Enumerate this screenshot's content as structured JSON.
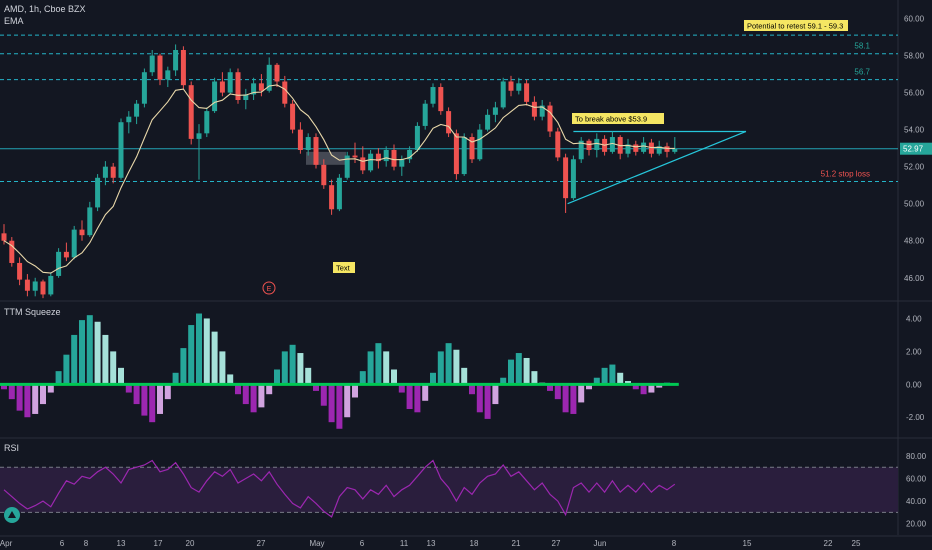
{
  "header": {
    "symbol_line": "AMD, 1h, Cboe BZX",
    "ema_label": "EMA"
  },
  "colors": {
    "background": "#131722",
    "grid": "#1e222d",
    "axis_text": "#b2b5be",
    "bull": "#26a69a",
    "bear": "#ef5350",
    "ema": "#e8d7a9",
    "level_line": "#26c6da",
    "rsi_line": "#9c27b0",
    "rsi_band": "#2a1e3d",
    "squeeze_pos_strong": "#26a69a",
    "squeeze_pos_weak": "#a6e1d9",
    "squeeze_neg_strong": "#9c27b0",
    "squeeze_neg_weak": "#d1a3df",
    "zero_line": "#00c853",
    "annotation_bg": "#f5e663",
    "stop_loss": "#ef5350"
  },
  "chart_data": [
    {
      "type": "candlestick",
      "panel": "price",
      "symbol": "AMD",
      "interval": "1h",
      "exchange": "Cboe BZX",
      "ylim": [
        44.8,
        61.0
      ],
      "y_ticks": [
        "46.00",
        "48.00",
        "50.00",
        "52.00",
        "54.00",
        "56.00",
        "58.00",
        "60.00"
      ],
      "last_price": "52.97",
      "x_ticks": [
        "Apr",
        "6",
        "8",
        "13",
        "17",
        "20",
        "27",
        "May",
        "6",
        "11",
        "13",
        "18",
        "21",
        "27",
        "Jun",
        "8",
        "15",
        "22",
        "25"
      ],
      "candles": [
        [
          0,
          48.4,
          48.9,
          47.8,
          48.0
        ],
        [
          1,
          48.0,
          48.2,
          46.6,
          46.8
        ],
        [
          2,
          46.8,
          47.1,
          45.6,
          45.9
        ],
        [
          3,
          45.9,
          46.2,
          45.0,
          45.3
        ],
        [
          4,
          45.3,
          46.0,
          45.0,
          45.8
        ],
        [
          5,
          45.8,
          45.9,
          44.9,
          45.1
        ],
        [
          6,
          45.1,
          46.3,
          45.0,
          46.1
        ],
        [
          7,
          46.1,
          47.6,
          46.0,
          47.4
        ],
        [
          8,
          47.4,
          47.9,
          46.9,
          47.1
        ],
        [
          9,
          47.1,
          48.8,
          47.0,
          48.6
        ],
        [
          10,
          48.6,
          49.1,
          48.0,
          48.3
        ],
        [
          11,
          48.3,
          50.1,
          48.2,
          49.8
        ],
        [
          12,
          49.8,
          51.6,
          49.6,
          51.4
        ],
        [
          13,
          51.4,
          52.3,
          51.0,
          52.0
        ],
        [
          14,
          52.0,
          52.2,
          51.1,
          51.4
        ],
        [
          15,
          51.4,
          54.6,
          51.3,
          54.4
        ],
        [
          16,
          54.4,
          55.0,
          53.8,
          54.7
        ],
        [
          17,
          54.7,
          55.6,
          54.3,
          55.4
        ],
        [
          18,
          55.4,
          57.3,
          55.2,
          57.1
        ],
        [
          19,
          57.1,
          58.3,
          56.9,
          58.0
        ],
        [
          20,
          58.0,
          58.1,
          56.4,
          56.7
        ],
        [
          21,
          56.7,
          57.4,
          56.3,
          57.2
        ],
        [
          22,
          57.2,
          58.6,
          56.9,
          58.3
        ],
        [
          23,
          58.3,
          58.5,
          56.2,
          56.4
        ],
        [
          24,
          56.4,
          56.6,
          53.2,
          53.5
        ],
        [
          25,
          53.5,
          54.3,
          51.3,
          53.8
        ],
        [
          26,
          53.8,
          55.2,
          53.6,
          55.0
        ],
        [
          27,
          55.0,
          56.8,
          54.9,
          56.6
        ],
        [
          28,
          56.6,
          57.1,
          55.8,
          56.0
        ],
        [
          29,
          56.0,
          57.3,
          55.9,
          57.1
        ],
        [
          30,
          57.1,
          57.3,
          55.4,
          55.6
        ],
        [
          31,
          55.6,
          56.2,
          55.1,
          55.9
        ],
        [
          32,
          55.9,
          56.8,
          55.6,
          56.5
        ],
        [
          33,
          56.5,
          57.0,
          55.8,
          56.1
        ],
        [
          34,
          56.1,
          57.9,
          56.0,
          57.5
        ],
        [
          35,
          57.5,
          57.6,
          56.3,
          56.6
        ],
        [
          36,
          56.6,
          56.9,
          55.2,
          55.4
        ],
        [
          37,
          55.4,
          55.6,
          53.8,
          54.0
        ],
        [
          38,
          54.0,
          54.4,
          52.7,
          52.9
        ],
        [
          39,
          52.9,
          53.8,
          52.6,
          53.6
        ],
        [
          40,
          53.6,
          53.8,
          51.9,
          52.1
        ],
        [
          41,
          52.1,
          52.4,
          50.8,
          51.0
        ],
        [
          42,
          51.0,
          51.3,
          49.4,
          49.7
        ],
        [
          43,
          49.7,
          51.6,
          49.6,
          51.4
        ],
        [
          44,
          51.4,
          52.8,
          51.3,
          52.6
        ],
        [
          45,
          52.6,
          53.3,
          52.2,
          52.5
        ],
        [
          46,
          52.5,
          53.1,
          51.6,
          51.8
        ],
        [
          47,
          51.8,
          52.9,
          51.7,
          52.7
        ],
        [
          48,
          52.7,
          53.0,
          51.9,
          52.3
        ],
        [
          49,
          52.3,
          53.1,
          52.0,
          52.9
        ],
        [
          50,
          52.9,
          53.2,
          51.8,
          52.0
        ],
        [
          51,
          52.0,
          52.6,
          51.5,
          52.4
        ],
        [
          52,
          52.4,
          53.1,
          52.2,
          52.9
        ],
        [
          53,
          52.9,
          54.4,
          52.8,
          54.2
        ],
        [
          54,
          54.2,
          55.6,
          54.0,
          55.4
        ],
        [
          55,
          55.4,
          56.5,
          55.2,
          56.3
        ],
        [
          56,
          56.3,
          56.5,
          54.8,
          55.0
        ],
        [
          57,
          55.0,
          55.2,
          53.6,
          53.8
        ],
        [
          58,
          53.8,
          54.0,
          51.3,
          51.6
        ],
        [
          59,
          51.6,
          53.8,
          51.5,
          53.6
        ],
        [
          60,
          53.6,
          53.8,
          52.2,
          52.4
        ],
        [
          61,
          52.4,
          54.3,
          52.3,
          54.0
        ],
        [
          62,
          54.0,
          55.1,
          53.9,
          54.8
        ],
        [
          63,
          54.8,
          55.5,
          54.4,
          55.2
        ],
        [
          64,
          55.2,
          56.8,
          55.1,
          56.6
        ],
        [
          65,
          56.6,
          56.9,
          55.8,
          56.1
        ],
        [
          66,
          56.1,
          56.8,
          55.9,
          56.5
        ],
        [
          67,
          56.5,
          56.7,
          55.3,
          55.5
        ],
        [
          68,
          55.5,
          55.8,
          54.5,
          54.7
        ],
        [
          69,
          54.7,
          55.6,
          54.5,
          55.3
        ],
        [
          70,
          55.3,
          55.5,
          53.6,
          53.9
        ],
        [
          71,
          53.9,
          54.1,
          52.3,
          52.5
        ],
        [
          72,
          52.5,
          52.7,
          49.5,
          50.3
        ],
        [
          73,
          50.3,
          52.6,
          50.2,
          52.4
        ],
        [
          74,
          52.4,
          53.6,
          52.2,
          53.4
        ],
        [
          75,
          53.4,
          53.5,
          52.6,
          52.9
        ],
        [
          76,
          52.9,
          53.8,
          52.5,
          53.5
        ],
        [
          77,
          53.5,
          53.7,
          52.6,
          52.8
        ],
        [
          78,
          52.8,
          53.9,
          52.7,
          53.6
        ],
        [
          79,
          53.6,
          53.7,
          52.4,
          52.7
        ],
        [
          80,
          52.7,
          53.5,
          52.5,
          53.2
        ],
        [
          81,
          53.2,
          53.4,
          52.6,
          52.8
        ],
        [
          82,
          52.8,
          53.6,
          52.7,
          53.3
        ],
        [
          83,
          53.3,
          53.5,
          52.5,
          52.7
        ],
        [
          84,
          52.7,
          53.4,
          52.6,
          53.1
        ],
        [
          85,
          53.1,
          53.3,
          52.5,
          52.8
        ],
        [
          86,
          52.8,
          53.6,
          52.7,
          52.97
        ]
      ],
      "ema_label": "EMA",
      "levels": [
        {
          "value": 59.1,
          "label": ""
        },
        {
          "value": 58.1,
          "label": "58.1"
        },
        {
          "value": 56.7,
          "label": "56.7"
        },
        {
          "value": 52.97,
          "label": ""
        },
        {
          "value": 51.2,
          "label": "51.2 stop loss"
        }
      ],
      "annotations": [
        "Potential to retest 59.1 - 59.3",
        "To break above $53.9",
        "Text"
      ],
      "event_marker": "E"
    },
    {
      "type": "bar",
      "panel": "squeeze",
      "title": "TTM Squeeze",
      "ylim": [
        -3.2,
        5.0
      ],
      "y_ticks": [
        "4.00",
        "2.00",
        "0.00",
        "-2.00"
      ],
      "values": [
        -0.3,
        -0.9,
        -1.6,
        -2.0,
        -1.8,
        -1.2,
        -0.5,
        0.8,
        1.8,
        3.0,
        3.9,
        4.2,
        3.8,
        3.0,
        2.0,
        1.0,
        -0.5,
        -1.2,
        -1.9,
        -2.3,
        -1.8,
        -0.9,
        0.7,
        2.2,
        3.6,
        4.3,
        4.0,
        3.2,
        2.0,
        0.6,
        -0.6,
        -1.2,
        -1.7,
        -1.4,
        -0.6,
        0.9,
        2.0,
        2.4,
        1.9,
        1.0,
        -0.4,
        -1.3,
        -2.3,
        -2.7,
        -2.0,
        -0.8,
        0.8,
        2.0,
        2.5,
        2.0,
        0.9,
        -0.5,
        -1.5,
        -1.7,
        -1.0,
        0.7,
        2.0,
        2.5,
        2.1,
        1.0,
        -0.6,
        -1.7,
        -2.1,
        -1.2,
        0.4,
        1.5,
        1.9,
        1.6,
        0.8,
        0.1,
        -0.4,
        -0.9,
        -1.7,
        -1.8,
        -1.1,
        -0.3,
        0.4,
        1.0,
        1.2,
        0.7,
        0.2,
        -0.3,
        -0.6,
        -0.5,
        -0.2,
        0.1,
        0.0
      ],
      "zero_line": 0
    },
    {
      "type": "line",
      "panel": "rsi",
      "title": "RSI",
      "ylim": [
        10,
        95
      ],
      "y_ticks": [
        "80.00",
        "60.00",
        "40.00",
        "20.00"
      ],
      "band": [
        30,
        70
      ],
      "values": [
        50,
        44,
        38,
        33,
        36,
        40,
        35,
        47,
        58,
        55,
        62,
        60,
        66,
        70,
        64,
        56,
        68,
        70,
        72,
        76,
        66,
        68,
        74,
        64,
        52,
        48,
        58,
        66,
        62,
        68,
        56,
        60,
        64,
        58,
        66,
        55,
        46,
        38,
        34,
        44,
        38,
        31,
        26,
        44,
        52,
        50,
        42,
        50,
        46,
        54,
        44,
        50,
        54,
        62,
        70,
        76,
        60,
        52,
        40,
        52,
        46,
        56,
        62,
        64,
        72,
        62,
        66,
        58,
        50,
        56,
        46,
        40,
        28,
        52,
        56,
        48,
        56,
        48,
        58,
        48,
        54,
        48,
        56,
        48,
        54,
        50,
        55
      ]
    }
  ]
}
